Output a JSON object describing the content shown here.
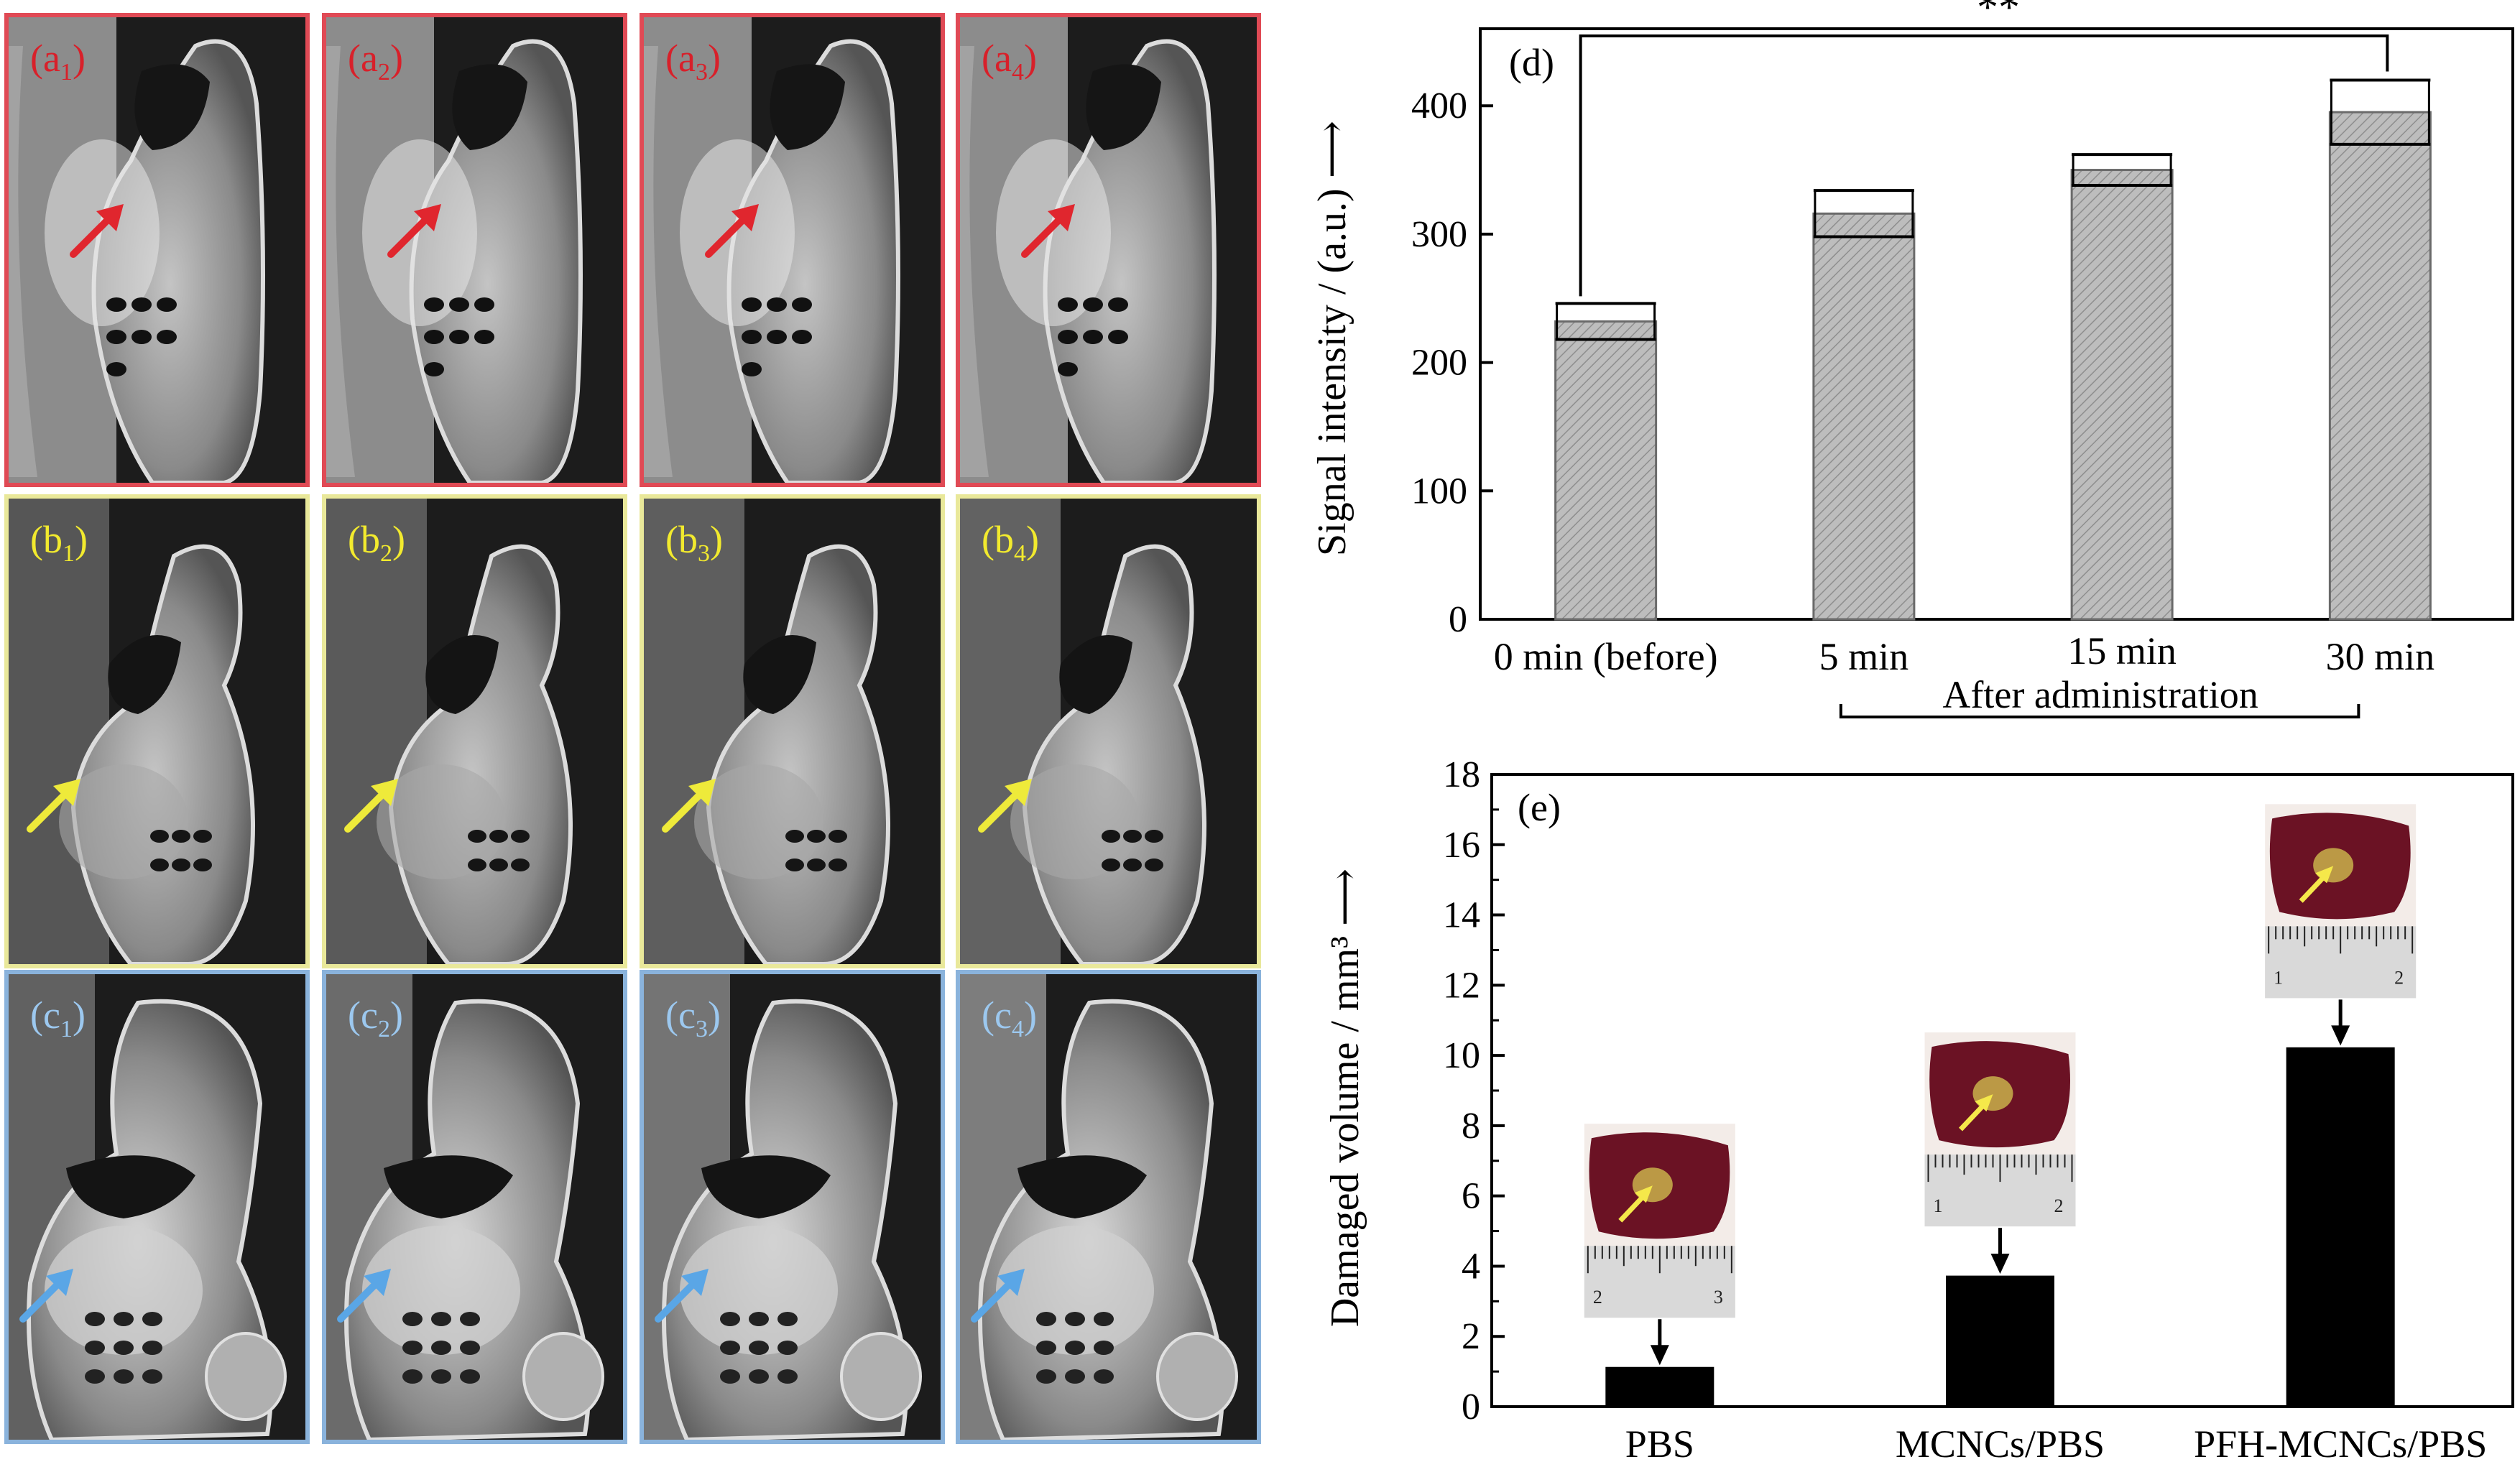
{
  "colors": {
    "row_a": "#e04a55",
    "row_b": "#e9e89a",
    "row_c": "#8ab3dc",
    "label_a": "#d8202a",
    "label_b": "#f2ea2e",
    "label_c": "#9cc8ef",
    "arrow_a": "#e0262e",
    "arrow_b": "#eeea3a",
    "arrow_c": "#5aa6e6",
    "bar_d_fill": "#bdbdbd",
    "bar_e_fill": "#000000"
  },
  "mri_rows": [
    {
      "row": "a",
      "labels": [
        [
          "a",
          "1"
        ],
        [
          "a",
          "2"
        ],
        [
          "a",
          "3"
        ],
        [
          "a",
          "4"
        ]
      ]
    },
    {
      "row": "b",
      "labels": [
        [
          "b",
          "1"
        ],
        [
          "b",
          "2"
        ],
        [
          "b",
          "3"
        ],
        [
          "b",
          "4"
        ]
      ]
    },
    {
      "row": "c",
      "labels": [
        [
          "c",
          "1"
        ],
        [
          "c",
          "2"
        ],
        [
          "c",
          "3"
        ],
        [
          "c",
          "4"
        ]
      ]
    }
  ],
  "chart_data": [
    {
      "panel_label": "(d)",
      "type": "bar",
      "categories": [
        "0 min (before)",
        "5 min",
        "15 min",
        "30 min"
      ],
      "values": [
        232,
        316,
        350,
        395
      ],
      "error": [
        14,
        18,
        12,
        25
      ],
      "ylabel": "Signal intensity / (a.u.)",
      "ylabel_arrow": "⟶",
      "ylim": [
        0,
        460
      ],
      "yticks": [
        0,
        100,
        200,
        300,
        400
      ],
      "bracket_label": "After administration",
      "significance": "**",
      "bar_pattern": "hatched gray"
    },
    {
      "panel_label": "(e)",
      "type": "bar",
      "categories": [
        "PBS",
        "MCNCs/PBS",
        "PFH-MCNCs/PBS"
      ],
      "values": [
        1.1,
        3.7,
        10.2
      ],
      "ylabel": "Damaged volume / mm³",
      "ylabel_arrow": "⟶",
      "ylim": [
        0,
        18
      ],
      "yticks": [
        0,
        2,
        4,
        6,
        8,
        10,
        12,
        14,
        16,
        18
      ],
      "ruler_ticks": [
        [
          "2",
          "3"
        ],
        [
          "1",
          "2"
        ],
        [
          "1",
          "2"
        ]
      ]
    }
  ]
}
